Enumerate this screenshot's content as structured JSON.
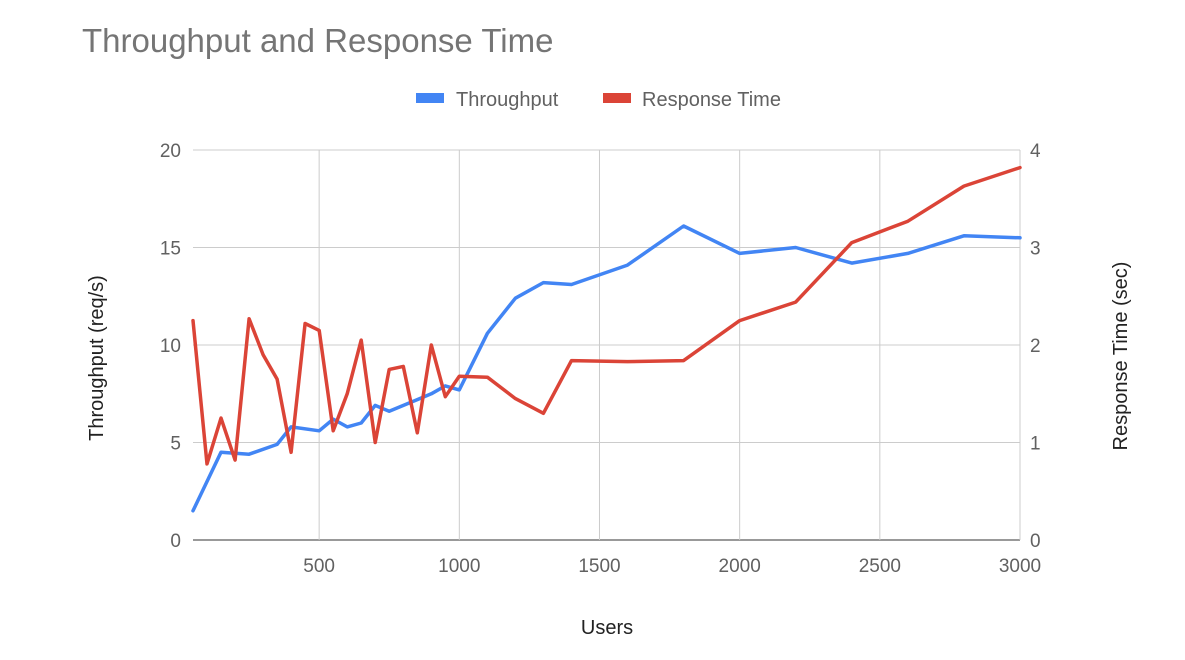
{
  "chart_data": {
    "type": "line",
    "title": "Throughput and Response Time",
    "xlabel": "Users",
    "ylabel_left": "Throughput (req/s)",
    "ylabel_right": "Response Time (sec)",
    "xlim": [
      50,
      3000
    ],
    "ylim_left": [
      0,
      20
    ],
    "ylim_right": [
      0,
      4
    ],
    "x_ticks": [
      500,
      1000,
      1500,
      2000,
      2500,
      3000
    ],
    "y_ticks_left": [
      0,
      5,
      10,
      15,
      20
    ],
    "y_ticks_right": [
      0,
      1,
      2,
      3,
      4
    ],
    "grid": true,
    "legend_position": "top",
    "series": [
      {
        "name": "Throughput",
        "axis": "left",
        "color": "#4285f4",
        "x": [
          50,
          150,
          250,
          350,
          400,
          500,
          550,
          600,
          650,
          700,
          750,
          850,
          900,
          950,
          1000,
          1100,
          1200,
          1300,
          1400,
          1600,
          1800,
          2000,
          2200,
          2400,
          2600,
          2800,
          3000
        ],
        "values": [
          1.5,
          4.5,
          4.4,
          4.9,
          5.8,
          5.6,
          6.2,
          5.8,
          6.0,
          6.9,
          6.6,
          7.2,
          7.5,
          7.9,
          7.7,
          10.6,
          12.4,
          13.2,
          13.1,
          14.1,
          16.1,
          14.7,
          15.0,
          14.2,
          14.7,
          15.6,
          15.5
        ]
      },
      {
        "name": "Response Time",
        "axis": "right",
        "color": "#db4437",
        "x": [
          50,
          100,
          150,
          200,
          250,
          300,
          350,
          400,
          450,
          500,
          550,
          600,
          650,
          700,
          750,
          800,
          850,
          900,
          950,
          1000,
          1100,
          1200,
          1300,
          1400,
          1600,
          1800,
          2000,
          2200,
          2400,
          2600,
          2800,
          3000
        ],
        "values": [
          2.25,
          0.78,
          1.25,
          0.82,
          2.27,
          1.9,
          1.65,
          0.9,
          2.22,
          2.15,
          1.12,
          1.5,
          2.05,
          1.0,
          1.75,
          1.78,
          1.1,
          2.0,
          1.47,
          1.68,
          1.67,
          1.45,
          1.3,
          1.84,
          1.83,
          1.84,
          2.25,
          2.44,
          3.05,
          3.27,
          3.63,
          3.82
        ]
      }
    ]
  }
}
